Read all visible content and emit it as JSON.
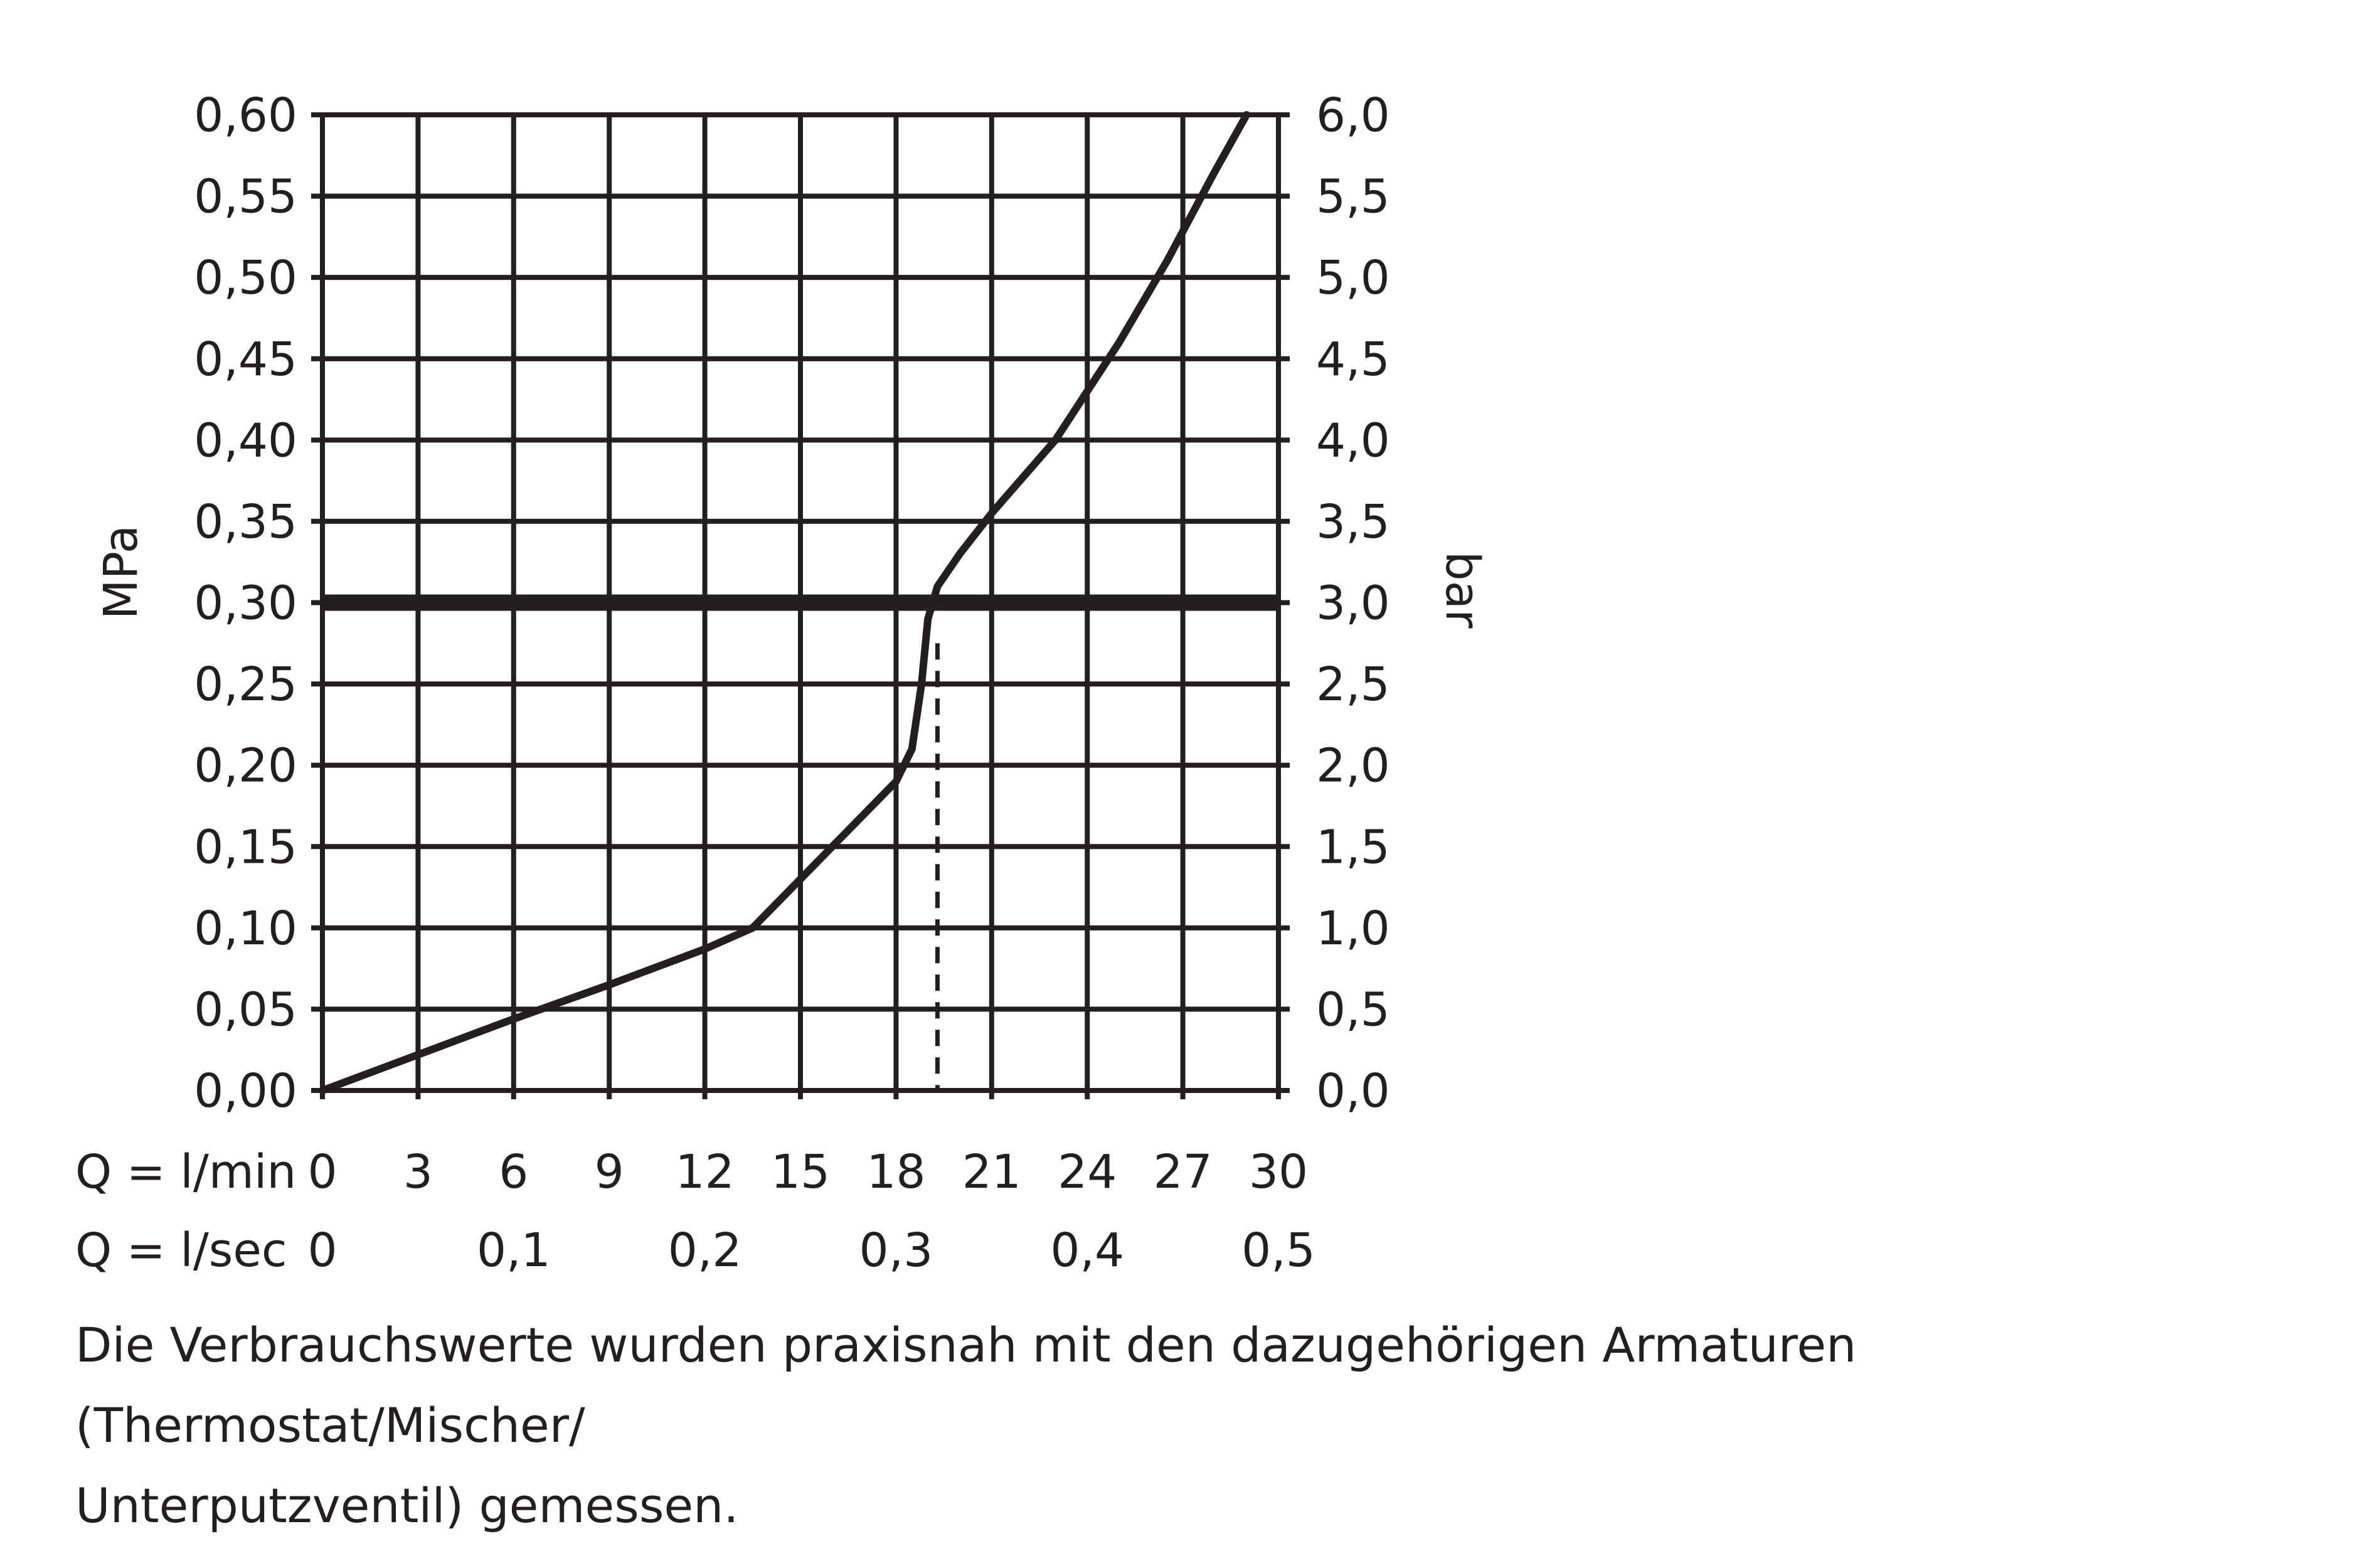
{
  "chart_data": {
    "type": "line",
    "title": "",
    "ylabel_left": "MPa",
    "ylabel_right": "bar",
    "x_primary_label": "Q = l/min",
    "x_secondary_label": "Q = l/sec",
    "x_ticks": [
      "0",
      "3",
      "6",
      "9",
      "12",
      "15",
      "18",
      "21",
      "24",
      "27",
      "30"
    ],
    "x_secondary_ticks": [
      {
        "at": 0,
        "label": "0"
      },
      {
        "at": 6,
        "label": "0,1"
      },
      {
        "at": 12,
        "label": "0,2"
      },
      {
        "at": 18,
        "label": "0,3"
      },
      {
        "at": 24,
        "label": "0,4"
      },
      {
        "at": 30,
        "label": "0,5"
      }
    ],
    "y_ticks_left": [
      "0,00",
      "0,05",
      "0,10",
      "0,15",
      "0,20",
      "0,25",
      "0,30",
      "0,35",
      "0,40",
      "0,45",
      "0,50",
      "0,55",
      "0,60"
    ],
    "y_ticks_right": [
      "0,0",
      "0,5",
      "1,0",
      "1,5",
      "2,0",
      "2,5",
      "3,0",
      "3,5",
      "4,0",
      "4,5",
      "5,0",
      "5,5",
      "6,0"
    ],
    "xlim": [
      0,
      30
    ],
    "ylim": [
      0,
      0.6
    ],
    "grid": true,
    "series": [
      {
        "x": [
          0,
          3,
          6,
          9,
          12,
          13.5,
          15,
          16.5,
          18,
          18.5,
          18.8,
          19.0,
          19.3,
          20,
          21,
          23,
          25,
          26.5,
          28,
          29
        ],
        "y": [
          0,
          0.022,
          0.044,
          0.065,
          0.087,
          0.1,
          0.13,
          0.16,
          0.19,
          0.21,
          0.25,
          0.29,
          0.31,
          0.33,
          0.355,
          0.4,
          0.46,
          0.51,
          0.565,
          0.6
        ]
      }
    ],
    "reference_line": {
      "y": 0.3
    },
    "marker_line": {
      "x": 19.3,
      "y_from": 0,
      "y_to": 0.275,
      "style": "dashed"
    }
  },
  "caption": {
    "line1": "Die Verbrauchswerte wurden praxisnah mit den dazugehörigen Armaturen (Thermostat/Mischer/",
    "line2": "Unterputzventil) gemessen."
  },
  "colors": {
    "ink": "#231f20",
    "background": "#ffffff"
  }
}
